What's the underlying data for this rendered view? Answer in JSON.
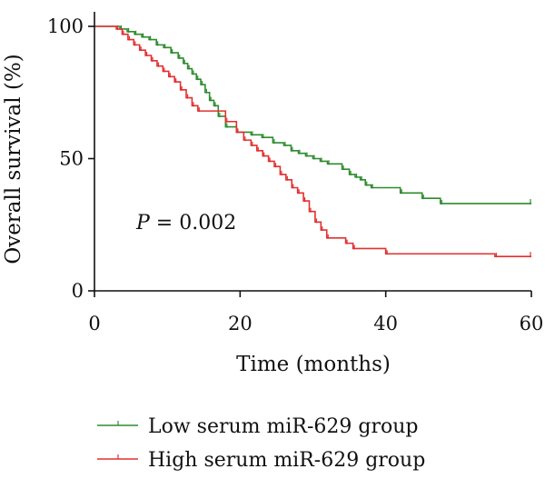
{
  "chart_data": {
    "type": "line",
    "subtype": "kaplan-meier",
    "xlabel": "Time (months)",
    "ylabel": "Overall survival (%)",
    "xlim": [
      0,
      60
    ],
    "ylim": [
      0,
      100
    ],
    "xticks": [
      "0",
      "20",
      "40",
      "60"
    ],
    "yticks": [
      "0",
      "50",
      "100"
    ],
    "annotation": {
      "italic": "P",
      "rest": " = 0.002"
    },
    "grid": false,
    "legend_position": "bottom",
    "series": [
      {
        "name": "Low serum miR-629 group",
        "color": "#2e8b2e",
        "x": [
          0,
          3.5,
          4.5,
          5.5,
          6.5,
          7.5,
          8.5,
          9.5,
          10.5,
          11.5,
          12.2,
          12.8,
          13.4,
          14.0,
          14.6,
          15.2,
          15.8,
          16.4,
          17.0,
          18.0,
          19.5,
          21.5,
          23.0,
          24.5,
          26.0,
          27.0,
          28.0,
          29.0,
          30.0,
          31.0,
          32.0,
          34.0,
          35.0,
          35.8,
          36.5,
          37.2,
          38.0,
          42.0,
          45.0,
          47.5,
          60
        ],
        "y": [
          100,
          99,
          98,
          97,
          96,
          95,
          93,
          92,
          90,
          88,
          86,
          84,
          82,
          80,
          78,
          75,
          72,
          70,
          66,
          62,
          60,
          59,
          58,
          56,
          55,
          53,
          52,
          51,
          50,
          49,
          48,
          46,
          44,
          43,
          42,
          40,
          39,
          37,
          35,
          33,
          33
        ]
      },
      {
        "name": "High serum miR-629 group",
        "color": "#e23030",
        "x": [
          0,
          3.0,
          3.8,
          4.6,
          5.4,
          6.2,
          7.0,
          7.8,
          8.6,
          9.4,
          10.2,
          11.0,
          11.8,
          12.6,
          13.4,
          14.2,
          18.0,
          19.5,
          20.5,
          21.5,
          22.3,
          23.1,
          23.9,
          24.7,
          25.5,
          26.3,
          27.1,
          27.9,
          28.7,
          29.5,
          30.3,
          31.1,
          31.9,
          34.5,
          35.5,
          40.0,
          55.0,
          60
        ],
        "y": [
          100,
          99,
          97,
          95,
          93,
          91,
          89,
          87,
          85,
          83,
          81,
          79,
          76,
          73,
          70,
          68,
          64,
          60,
          57,
          55,
          53,
          51,
          49,
          47,
          44,
          42,
          39,
          37,
          34,
          30,
          26,
          23,
          20,
          18,
          16,
          14,
          13,
          13
        ]
      }
    ]
  }
}
